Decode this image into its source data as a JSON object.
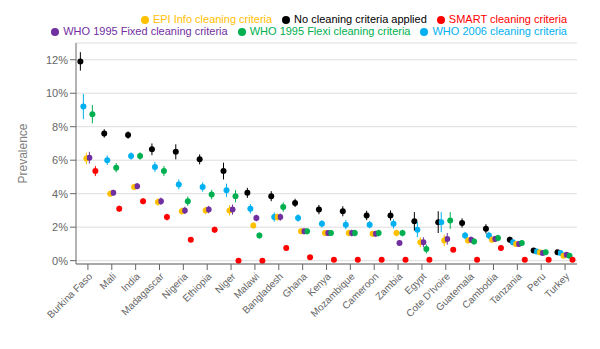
{
  "chart_data": {
    "type": "scatter",
    "ylabel": "Prevalence",
    "categories": [
      "Burkina Faso",
      "Mali",
      "India",
      "Madagascar",
      "Nigeria",
      "Ethiopia",
      "Niger",
      "Malawi",
      "Bangladesh",
      "Ghana",
      "Kenya",
      "Mozambique",
      "Cameroon",
      "Zambia",
      "Egypt",
      "Cote D'Ivoire",
      "Guatemala",
      "Cambodia",
      "Tanzania",
      "Peru",
      "Turkey"
    ],
    "series": [
      {
        "name": "No cleaning criteria applied",
        "color": "#000000",
        "values": [
          11.9,
          7.6,
          7.5,
          6.65,
          6.5,
          6.05,
          5.35,
          4.05,
          3.85,
          3.45,
          3.05,
          2.95,
          2.7,
          2.7,
          2.35,
          2.3,
          2.25,
          1.9,
          1.25,
          0.6,
          0.5
        ],
        "yerr_low": [
          0.55,
          0.25,
          0.22,
          0.35,
          0.45,
          0.3,
          0.5,
          0.3,
          0.3,
          0.25,
          0.28,
          0.3,
          0.28,
          0.3,
          0.55,
          0.65,
          0.28,
          0.28,
          0.18,
          0.12,
          0.09
        ],
        "yerr_high": [
          0.55,
          0.25,
          0.22,
          0.35,
          0.45,
          0.3,
          0.5,
          0.3,
          0.3,
          0.25,
          0.28,
          0.3,
          0.28,
          0.3,
          0.55,
          0.65,
          0.28,
          0.28,
          0.18,
          0.12,
          0.09
        ]
      },
      {
        "name": "WHO 2006 cleaning criteria",
        "color": "#00B0F0",
        "values": [
          9.2,
          6.0,
          6.25,
          5.6,
          4.55,
          4.4,
          4.2,
          3.1,
          2.6,
          2.55,
          2.2,
          2.15,
          2.15,
          2.2,
          1.85,
          2.3,
          1.5,
          1.5,
          1.1,
          0.55,
          0.45
        ],
        "yerr_low": [
          0.75,
          0.28,
          0.22,
          0.3,
          0.3,
          0.28,
          0.4,
          0.28,
          0.28,
          0.22,
          0.22,
          0.28,
          0.22,
          0.28,
          0.45,
          0.6,
          0.22,
          0.22,
          0.18,
          0.1,
          0.07
        ],
        "yerr_high": [
          0.75,
          0.28,
          0.22,
          0.3,
          0.3,
          0.28,
          0.4,
          0.28,
          0.28,
          0.22,
          0.22,
          0.28,
          0.22,
          0.28,
          0.45,
          0.6,
          0.22,
          0.22,
          0.18,
          0.1,
          0.07
        ]
      },
      {
        "name": "EPI Info cleaning criteria",
        "color": "#FFC000",
        "values": [
          6.1,
          4.0,
          4.4,
          3.5,
          2.95,
          3.0,
          3.0,
          2.1,
          2.6,
          1.75,
          1.65,
          1.65,
          1.6,
          1.65,
          1.1,
          1.2,
          1.2,
          1.25,
          1.0,
          0.5,
          0.3
        ],
        "yerr_low": [
          0.35,
          0.18,
          0.18,
          0.22,
          0.22,
          0.22,
          0.3,
          0.18,
          0.22,
          0.18,
          0.18,
          0.2,
          0.18,
          0.2,
          0.3,
          0.35,
          0.18,
          0.18,
          0.13,
          0.09,
          0.06
        ],
        "yerr_high": [
          0.35,
          0.18,
          0.18,
          0.22,
          0.22,
          0.22,
          0.3,
          0.18,
          0.22,
          0.18,
          0.18,
          0.2,
          0.18,
          0.2,
          0.3,
          0.35,
          0.18,
          0.18,
          0.13,
          0.09,
          0.06
        ]
      },
      {
        "name": "WHO 1995 Fixed cleaning criteria",
        "color": "#7030A0",
        "values": [
          6.15,
          4.05,
          4.45,
          3.55,
          3.0,
          3.05,
          3.05,
          2.55,
          2.6,
          1.75,
          1.65,
          1.65,
          1.6,
          1.05,
          1.1,
          1.3,
          1.25,
          1.3,
          1.0,
          0.45,
          0.35
        ],
        "yerr_low": [
          0.35,
          0.18,
          0.18,
          0.22,
          0.22,
          0.22,
          0.3,
          0.2,
          0.22,
          0.18,
          0.18,
          0.2,
          0.18,
          0.16,
          0.3,
          0.35,
          0.18,
          0.18,
          0.13,
          0.09,
          0.06
        ],
        "yerr_high": [
          0.35,
          0.18,
          0.18,
          0.22,
          0.22,
          0.22,
          0.3,
          0.2,
          0.22,
          0.18,
          0.18,
          0.2,
          0.18,
          0.16,
          0.3,
          0.35,
          0.18,
          0.18,
          0.13,
          0.09,
          0.06
        ]
      },
      {
        "name": "WHO 1995 Flexi cleaning criteria",
        "color": "#00B050",
        "values": [
          8.75,
          5.55,
          6.25,
          5.35,
          3.55,
          3.95,
          3.85,
          1.5,
          3.2,
          1.75,
          1.65,
          1.65,
          1.65,
          1.65,
          0.7,
          2.4,
          1.15,
          1.35,
          1.05,
          0.5,
          0.3
        ],
        "yerr_low": [
          0.55,
          0.28,
          0.22,
          0.3,
          0.28,
          0.28,
          0.36,
          0.18,
          0.28,
          0.18,
          0.18,
          0.2,
          0.2,
          0.2,
          0.27,
          0.5,
          0.18,
          0.2,
          0.14,
          0.09,
          0.06
        ],
        "yerr_high": [
          0.55,
          0.28,
          0.22,
          0.3,
          0.28,
          0.28,
          0.36,
          0.18,
          0.28,
          0.18,
          0.18,
          0.2,
          0.2,
          0.2,
          0.27,
          0.5,
          0.18,
          0.2,
          0.14,
          0.09,
          0.06
        ]
      },
      {
        "name": "SMART cleaning criteria",
        "color": "#FF0000",
        "values": [
          5.35,
          3.1,
          3.55,
          2.6,
          1.25,
          1.85,
          0.0,
          0.0,
          0.75,
          0.2,
          0.05,
          0.05,
          0.05,
          0.05,
          0.05,
          0.65,
          0.05,
          0.75,
          0.05,
          0.05,
          0.05
        ],
        "yerr_low": [
          0.3,
          0.18,
          0.18,
          0.2,
          0.12,
          0.18,
          0.0,
          0.0,
          0.12,
          0.0,
          0.0,
          0.0,
          0.0,
          0.0,
          0.0,
          0.12,
          0.0,
          0.12,
          0.0,
          0.0,
          0.0
        ],
        "yerr_high": [
          0.3,
          0.18,
          0.18,
          0.2,
          0.12,
          0.18,
          0.0,
          0.0,
          0.12,
          0.0,
          0.0,
          0.0,
          0.0,
          0.0,
          0.0,
          0.12,
          0.0,
          0.12,
          0.0,
          0.0,
          0.0
        ]
      }
    ],
    "ylim": [
      -0.2,
      13.0
    ],
    "yticks": [
      {
        "value": 0,
        "label": "0%"
      },
      {
        "value": 2,
        "label": "2%"
      },
      {
        "value": 4,
        "label": "4%"
      },
      {
        "value": 6,
        "label": "6%"
      },
      {
        "value": 8,
        "label": "8%"
      },
      {
        "value": 10,
        "label": "10%"
      },
      {
        "value": 12,
        "label": "12%"
      }
    ],
    "grid": true,
    "legend": "upper right"
  }
}
